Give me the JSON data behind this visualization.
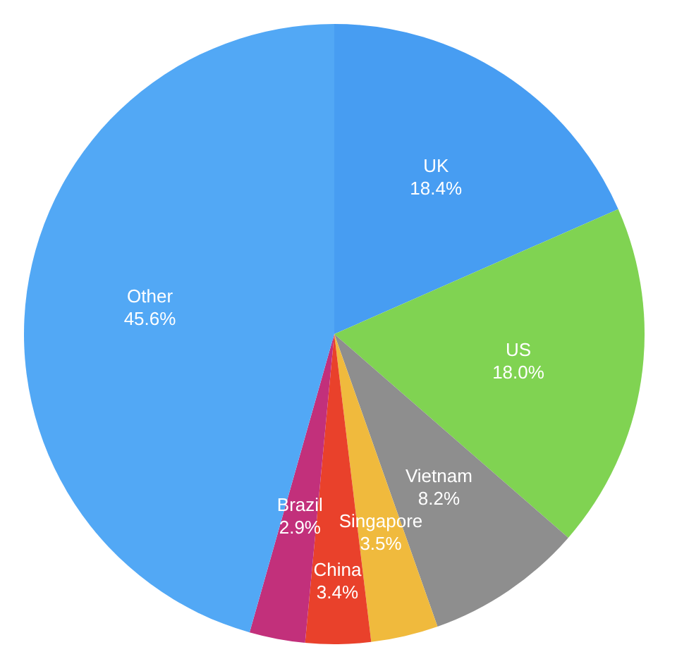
{
  "chart_data": {
    "type": "pie",
    "categories": [
      "UK",
      "US",
      "Vietnam",
      "Singapore",
      "China",
      "Brazil",
      "Other"
    ],
    "values": [
      18.4,
      18.0,
      8.2,
      3.5,
      3.4,
      2.9,
      45.6
    ],
    "colors": [
      "#479df2",
      "#80d352",
      "#8e8e8e",
      "#f0ba3d",
      "#e9412b",
      "#c2307b",
      "#52a8f5"
    ],
    "value_labels": [
      "18.4%",
      "18.0%",
      "8.2%",
      "3.5%",
      "3.4%",
      "2.9%",
      "45.6%"
    ],
    "legend": false
  }
}
